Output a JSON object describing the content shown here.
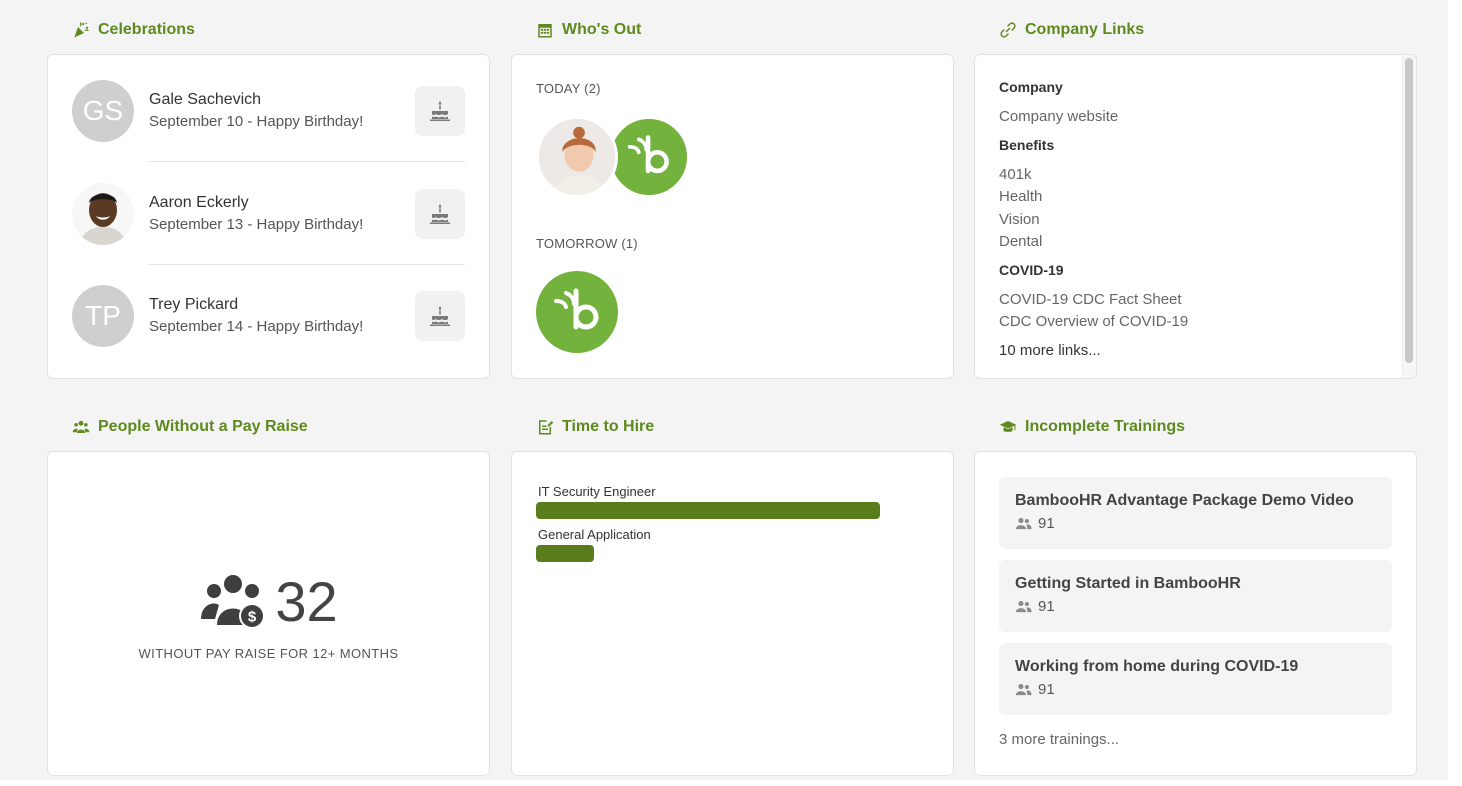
{
  "colors": {
    "accent": "#5e8a1e",
    "bar": "#5a7d1b",
    "logo_green": "#73b33d"
  },
  "celebrations": {
    "title": "Celebrations",
    "items": [
      {
        "initials": "GS",
        "name": "Gale Sachevich",
        "detail": "September 10 - Happy Birthday!"
      },
      {
        "initials": "",
        "name": "Aaron Eckerly",
        "detail": "September 13 - Happy Birthday!"
      },
      {
        "initials": "TP",
        "name": "Trey Pickard",
        "detail": "September 14 - Happy Birthday!"
      }
    ]
  },
  "whos_out": {
    "title": "Who's Out",
    "today_label": "TODAY (2)",
    "tomorrow_label": "TOMORROW (1)"
  },
  "company_links": {
    "title": "Company Links",
    "groups": [
      {
        "heading": "Company",
        "links": [
          "Company website"
        ]
      },
      {
        "heading": "Benefits",
        "links": [
          "401k",
          "Health",
          "Vision",
          "Dental"
        ]
      },
      {
        "heading": "COVID-19",
        "links": [
          "COVID-19 CDC Fact Sheet",
          "CDC Overview of COVID-19"
        ]
      }
    ],
    "more": "10 more links..."
  },
  "pay_raise": {
    "title": "People Without a Pay Raise",
    "count": "32",
    "caption": "WITHOUT PAY RAISE FOR 12+ MONTHS"
  },
  "time_to_hire": {
    "title": "Time to Hire",
    "jobs": [
      {
        "label": "IT Security Engineer",
        "fraction": 1.0
      },
      {
        "label": "General Application",
        "fraction": 0.17
      }
    ]
  },
  "trainings": {
    "title": "Incomplete Trainings",
    "items": [
      {
        "title": "BambooHR Advantage Package Demo Video",
        "count": "91"
      },
      {
        "title": "Getting Started in BambooHR",
        "count": "91"
      },
      {
        "title": "Working from home during COVID-19",
        "count": "91"
      }
    ],
    "more": "3 more trainings..."
  }
}
